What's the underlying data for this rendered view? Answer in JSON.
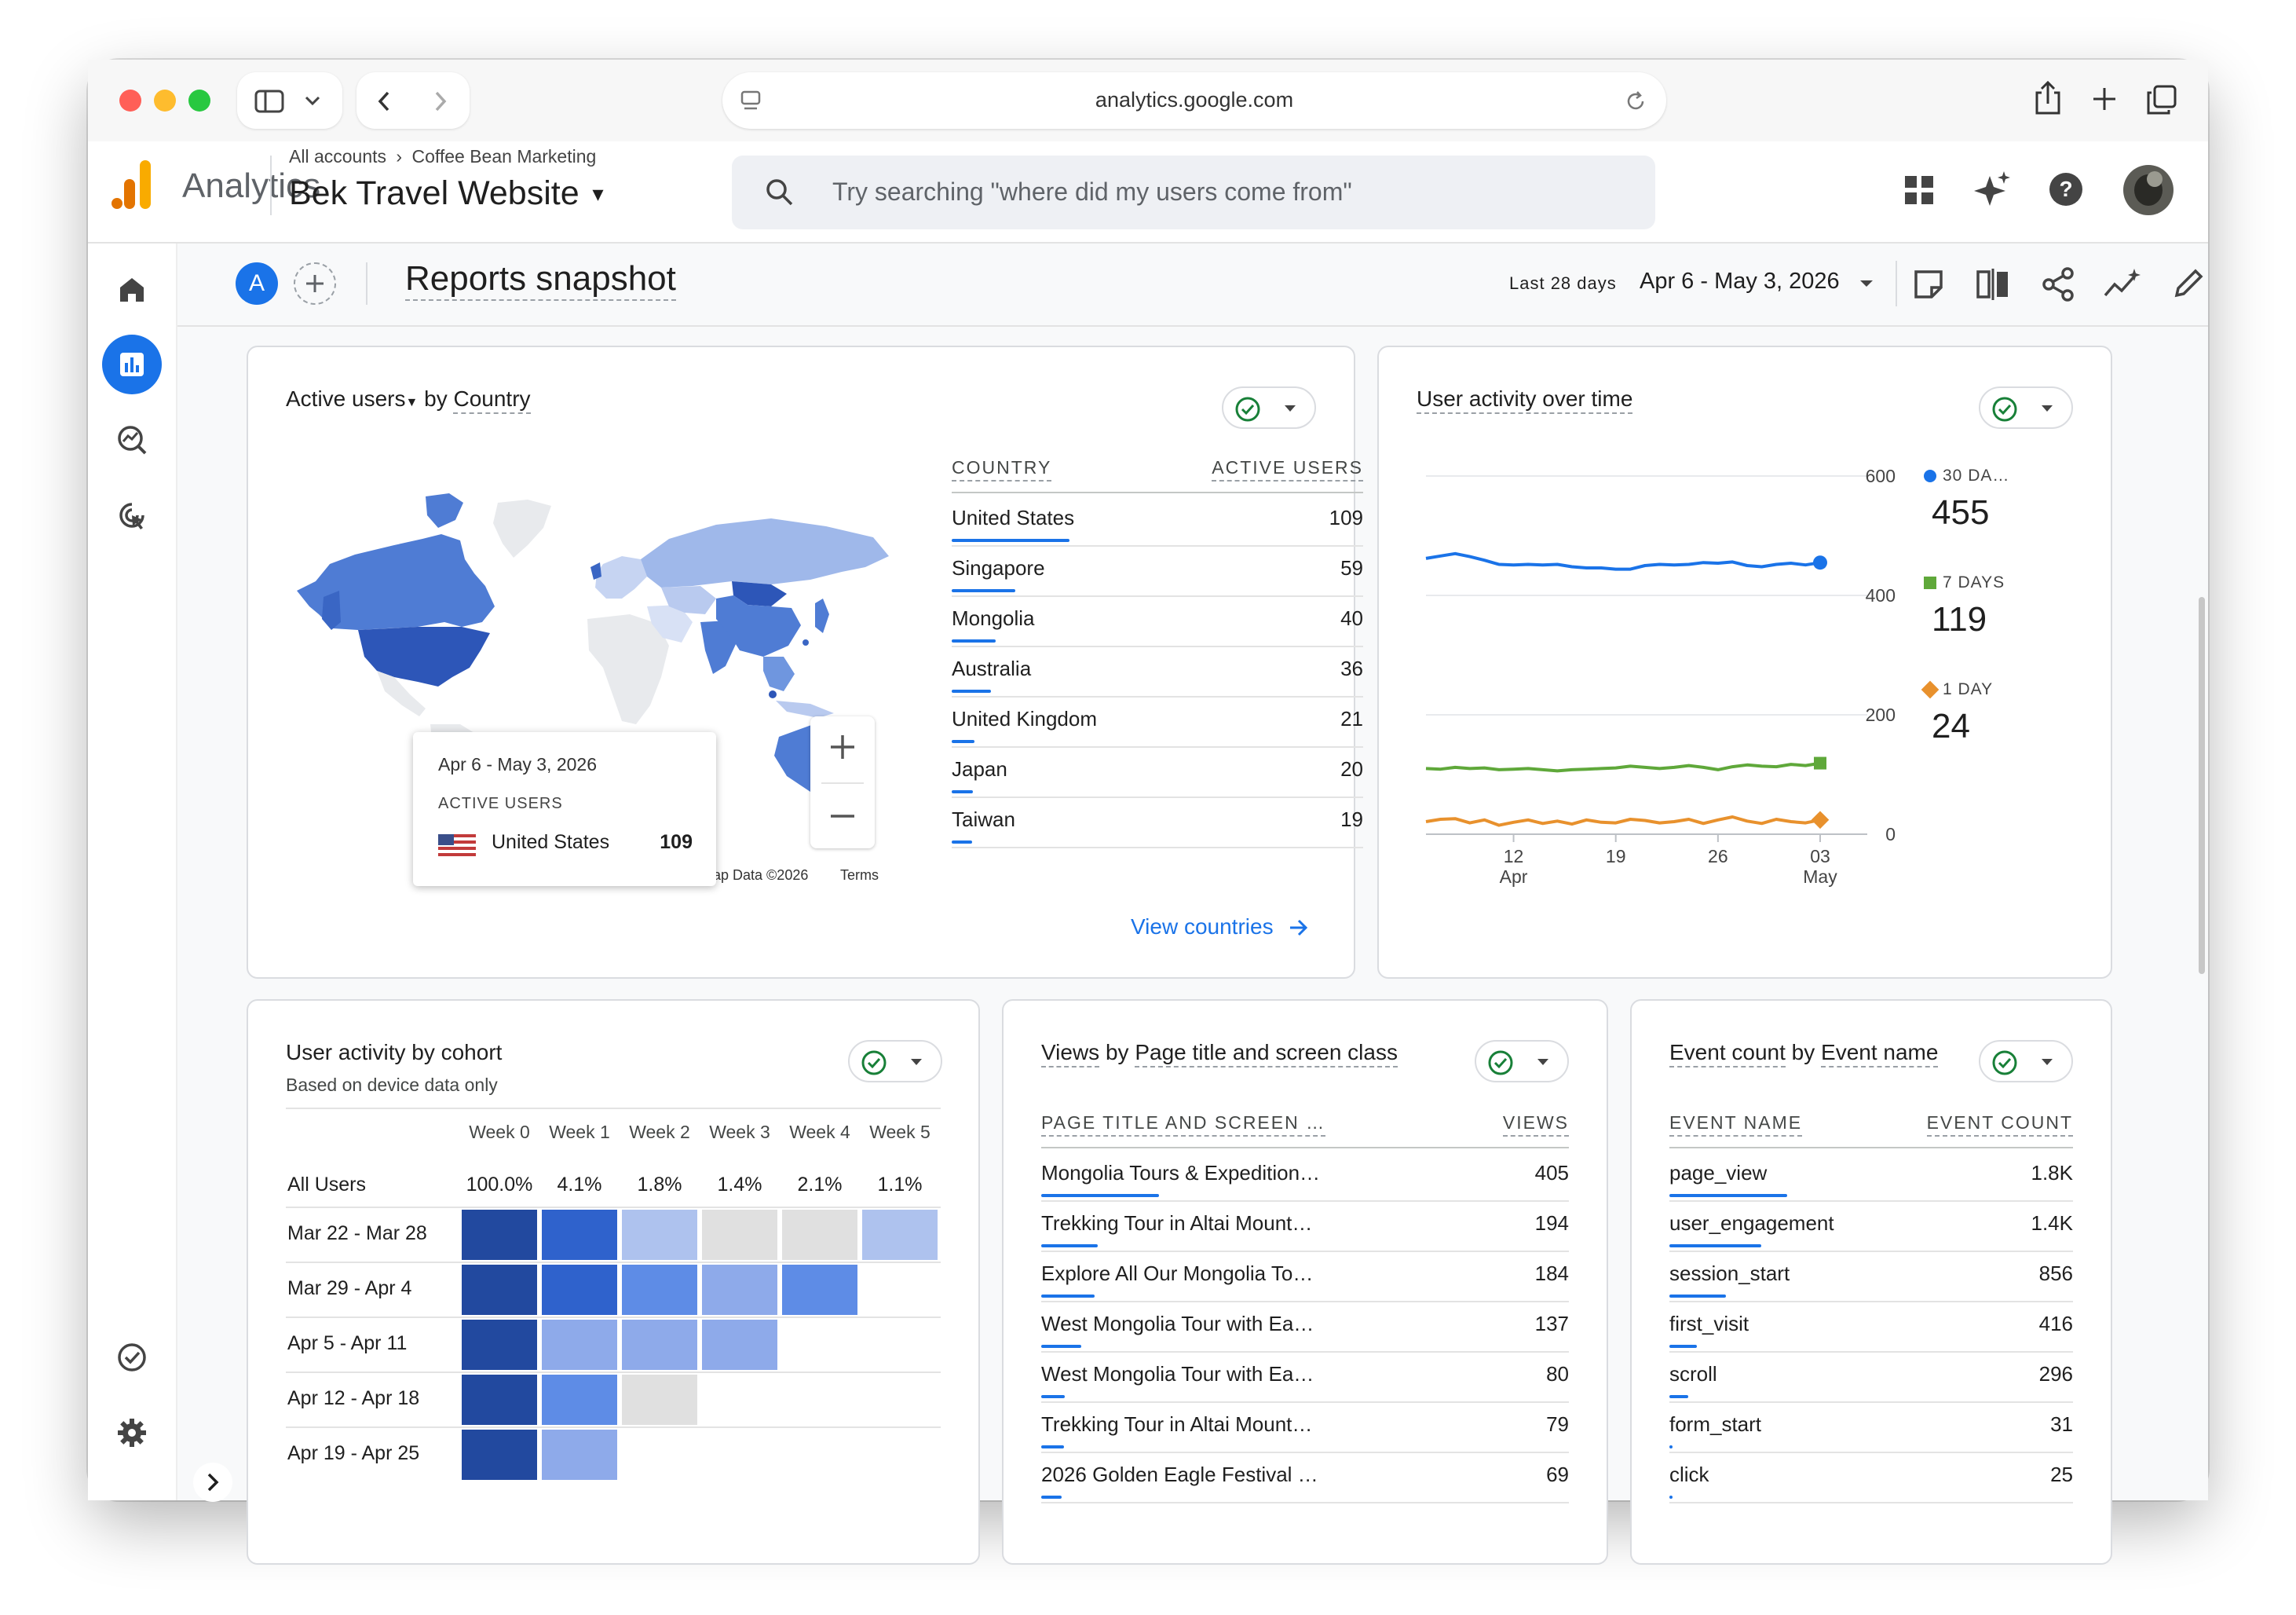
{
  "browser": {
    "url": "analytics.google.com"
  },
  "header": {
    "app_name": "Analytics",
    "breadcrumb_root": "All accounts",
    "breadcrumb_account": "Coffee Bean Marketing",
    "property_name": "Bek Travel Website",
    "search_placeholder": "Try searching \"where did my users come from\""
  },
  "toolbar": {
    "segment_letter": "A",
    "page_title": "Reports snapshot",
    "date_range_label": "Last 28 days",
    "date_range_value": "Apr 6 - May 3, 2026"
  },
  "card_country": {
    "title_metric": "Active users",
    "title_by": "by",
    "title_dimension": "Country",
    "col_country": "COUNTRY",
    "col_users": "ACTIVE USERS",
    "rows": [
      {
        "label": "United States",
        "value": "109",
        "ratio": 1.0
      },
      {
        "label": "Singapore",
        "value": "59",
        "ratio": 0.54
      },
      {
        "label": "Mongolia",
        "value": "40",
        "ratio": 0.37
      },
      {
        "label": "Australia",
        "value": "36",
        "ratio": 0.33
      },
      {
        "label": "United Kingdom",
        "value": "21",
        "ratio": 0.19
      },
      {
        "label": "Japan",
        "value": "20",
        "ratio": 0.18
      },
      {
        "label": "Taiwan",
        "value": "19",
        "ratio": 0.17
      }
    ],
    "tooltip": {
      "date": "Apr 6 - May 3, 2026",
      "metric": "ACTIVE USERS",
      "country": "United States",
      "value": "109"
    },
    "map_credit": "ap Data ©2026",
    "map_terms": "Terms",
    "link": "View countries"
  },
  "card_activity": {
    "title": "User activity over time",
    "y_ticks": [
      "600",
      "400",
      "200",
      "0"
    ],
    "x_ticks": [
      {
        "day": "12",
        "month": "Apr"
      },
      {
        "day": "19",
        "month": ""
      },
      {
        "day": "26",
        "month": ""
      },
      {
        "day": "03",
        "month": "May"
      }
    ],
    "legend": [
      {
        "label": "30 DA…",
        "value": "455",
        "color": "#1a73e8",
        "shape": "circle"
      },
      {
        "label": "7 DAYS",
        "value": "119",
        "color": "#5fa83a",
        "shape": "square"
      },
      {
        "label": "1 DAY",
        "value": "24",
        "color": "#e8912d",
        "shape": "diamond"
      }
    ]
  },
  "chart_data": {
    "type": "line",
    "x": [
      "Apr 6",
      "Apr 7",
      "Apr 8",
      "Apr 9",
      "Apr 10",
      "Apr 11",
      "Apr 12",
      "Apr 13",
      "Apr 14",
      "Apr 15",
      "Apr 16",
      "Apr 17",
      "Apr 18",
      "Apr 19",
      "Apr 20",
      "Apr 21",
      "Apr 22",
      "Apr 23",
      "Apr 24",
      "Apr 25",
      "Apr 26",
      "Apr 27",
      "Apr 28",
      "Apr 29",
      "Apr 30",
      "May 1",
      "May 2",
      "May 3"
    ],
    "ylim": [
      0,
      600
    ],
    "series": [
      {
        "name": "30 DA…",
        "color": "#1a73e8",
        "values": [
          462,
          466,
          470,
          465,
          459,
          452,
          451,
          452,
          451,
          452,
          448,
          446,
          446,
          444,
          444,
          450,
          452,
          451,
          452,
          455,
          454,
          456,
          450,
          448,
          452,
          454,
          451,
          455
        ]
      },
      {
        "name": "7 DAYS",
        "color": "#5fa83a",
        "values": [
          110,
          109,
          112,
          110,
          111,
          108,
          109,
          110,
          108,
          106,
          108,
          109,
          110,
          111,
          114,
          112,
          110,
          112,
          115,
          112,
          108,
          113,
          116,
          114,
          113,
          117,
          115,
          119
        ]
      },
      {
        "name": "1 DAY",
        "color": "#e8912d",
        "values": [
          21,
          25,
          26,
          19,
          24,
          15,
          20,
          24,
          18,
          22,
          17,
          24,
          20,
          19,
          25,
          23,
          19,
          21,
          25,
          18,
          24,
          29,
          22,
          18,
          25,
          21,
          19,
          24
        ]
      }
    ]
  },
  "card_cohort": {
    "title": "User activity by cohort",
    "subtitle": "Based on device data only",
    "weeks": [
      "Week 0",
      "Week 1",
      "Week 2",
      "Week 3",
      "Week 4",
      "Week 5"
    ],
    "all_users_label": "All Users",
    "all_users": [
      "100.0%",
      "4.1%",
      "1.8%",
      "1.4%",
      "2.1%",
      "1.1%"
    ],
    "cohorts": [
      {
        "label": "Mar 22 - Mar 28",
        "levels": [
          1.0,
          0.75,
          0.25,
          0.0,
          0.0,
          0.25
        ]
      },
      {
        "label": "Mar 29 - Apr 4",
        "levels": [
          1.0,
          0.75,
          0.5,
          0.35,
          0.6,
          null
        ]
      },
      {
        "label": "Apr 5 - Apr 11",
        "levels": [
          1.0,
          0.35,
          0.35,
          0.35,
          null,
          null
        ]
      },
      {
        "label": "Apr 12 - Apr 18",
        "levels": [
          1.0,
          0.55,
          0.0,
          null,
          null,
          null
        ]
      },
      {
        "label": "Apr 19 - Apr 25",
        "levels": [
          1.0,
          0.35,
          null,
          null,
          null,
          null
        ]
      }
    ]
  },
  "card_views": {
    "title_metric": "Views",
    "title_by": "by",
    "title_dimension": "Page title and screen class",
    "col_page": "PAGE TITLE AND SCREEN …",
    "col_views": "VIEWS",
    "rows": [
      {
        "label": "Mongolia Tours & Expedition…",
        "value": "405",
        "ratio": 1.0
      },
      {
        "label": "Trekking Tour in Altai Mount…",
        "value": "194",
        "ratio": 0.48
      },
      {
        "label": "Explore All Our Mongolia To…",
        "value": "184",
        "ratio": 0.45
      },
      {
        "label": "West Mongolia Tour with Ea…",
        "value": "137",
        "ratio": 0.34
      },
      {
        "label": "West Mongolia Tour with Ea…",
        "value": "80",
        "ratio": 0.2
      },
      {
        "label": "Trekking Tour in Altai Mount…",
        "value": "79",
        "ratio": 0.19
      },
      {
        "label": "2026 Golden Eagle Festival …",
        "value": "69",
        "ratio": 0.17
      }
    ]
  },
  "card_events": {
    "title_metric": "Event count",
    "title_by": "by",
    "title_dimension": "Event name",
    "col_event": "EVENT NAME",
    "col_count": "EVENT COUNT",
    "rows": [
      {
        "label": "page_view",
        "value": "1.8K",
        "ratio": 1.0
      },
      {
        "label": "user_engagement",
        "value": "1.4K",
        "ratio": 0.78
      },
      {
        "label": "session_start",
        "value": "856",
        "ratio": 0.48
      },
      {
        "label": "first_visit",
        "value": "416",
        "ratio": 0.23
      },
      {
        "label": "scroll",
        "value": "296",
        "ratio": 0.16
      },
      {
        "label": "form_start",
        "value": "31",
        "ratio": 0.02
      },
      {
        "label": "click",
        "value": "25",
        "ratio": 0.015
      }
    ]
  }
}
